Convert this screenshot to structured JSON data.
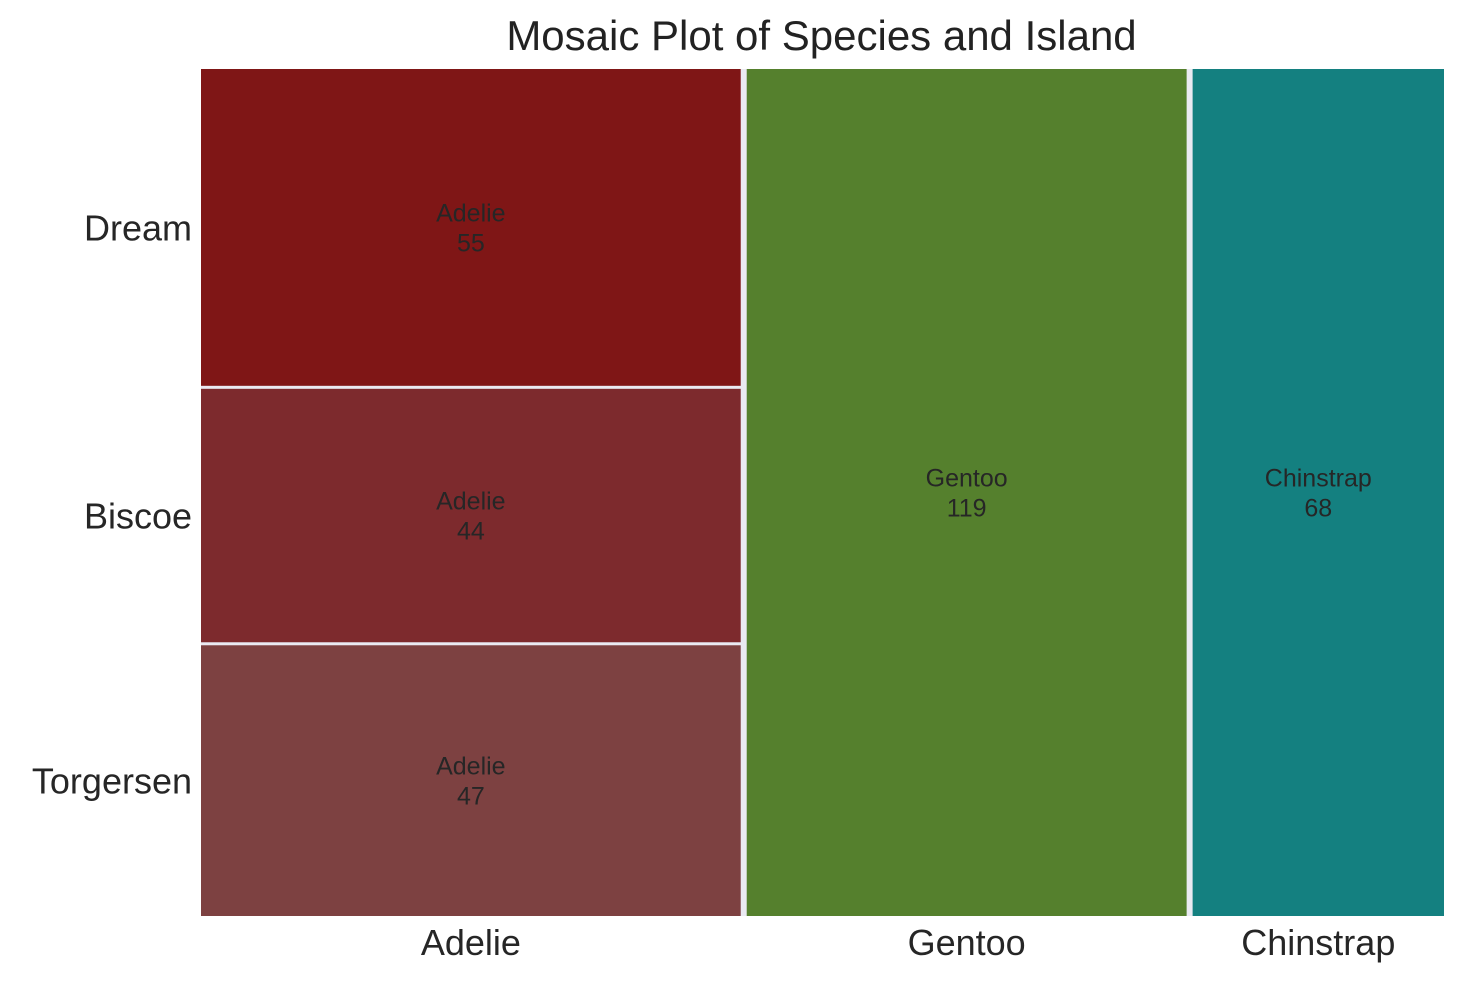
{
  "chart_data": {
    "type": "mosaic",
    "title": "Mosaic Plot of Species and Island",
    "x_categories": [
      "Adelie",
      "Gentoo",
      "Chinstrap"
    ],
    "y_categories": [
      "Dream",
      "Biscoe",
      "Torgersen"
    ],
    "cells": [
      {
        "species": "Adelie",
        "island": "Torgersen",
        "label": "Adelie",
        "count": 47
      },
      {
        "species": "Adelie",
        "island": "Biscoe",
        "label": "Adelie",
        "count": 44
      },
      {
        "species": "Adelie",
        "island": "Dream",
        "label": "Adelie",
        "count": 55
      },
      {
        "species": "Gentoo",
        "island": "Biscoe",
        "label": "Gentoo",
        "count": 119
      },
      {
        "species": "Chinstrap",
        "island": "Dream",
        "label": "Chinstrap",
        "count": 68
      }
    ],
    "colors": {
      "Adelie|Dream": "#7f1616",
      "Adelie|Biscoe": "#7d2a2d",
      "Adelie|Torgersen": "#7d4141",
      "Gentoo|Biscoe": "#55802d",
      "Chinstrap|Dream": "#148080",
      "background": "#eaeaf2",
      "gap": "#ffffff"
    },
    "grid": true
  }
}
